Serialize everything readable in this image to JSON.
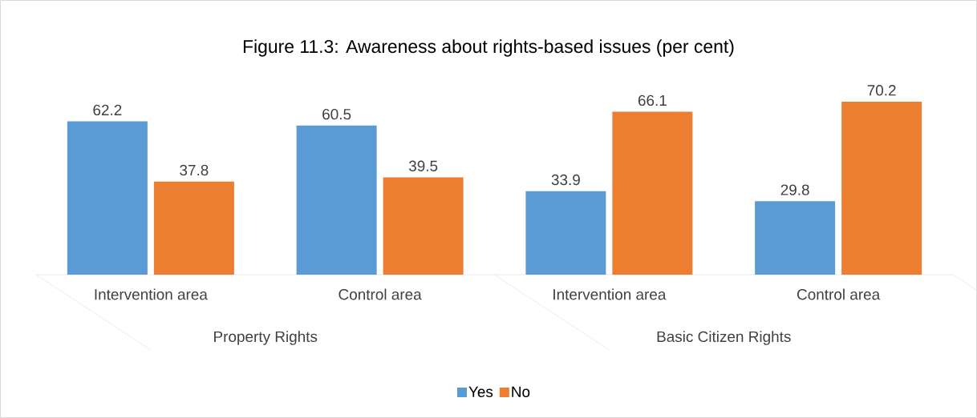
{
  "chart_data": {
    "type": "bar",
    "title": "Figure 11.3: Awareness about rights-based issues (per cent)",
    "categories": [
      "Intervention area",
      "Control area",
      "Intervention area",
      "Control area"
    ],
    "series": [
      {
        "name": "Yes",
        "color": "#5b9bd5",
        "values": [
          62.2,
          60.5,
          33.9,
          29.8
        ]
      },
      {
        "name": "No",
        "color": "#ed7d31",
        "values": [
          37.8,
          39.5,
          66.1,
          70.2
        ]
      }
    ],
    "annotations": [
      "Property Rights",
      "Basic Citizen Rights"
    ],
    "data_labels": true,
    "legend": "bottom",
    "grid": false
  }
}
